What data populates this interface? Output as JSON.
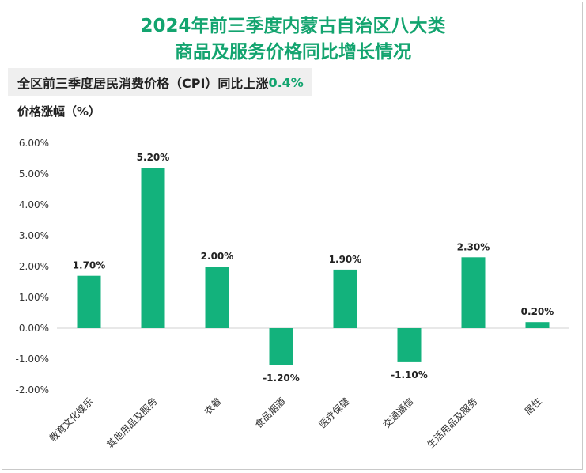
{
  "header": {
    "title_line1": "2024年前三季度内蒙古自治区八大类",
    "title_line2": "商品及服务价格同比增长情况",
    "subtitle_prefix": "全区前三季度居民消费价格（CPI）同比上涨",
    "subtitle_value": "0.4%",
    "unit_label": "价格涨幅（%）"
  },
  "colors": {
    "bar": "#13b27c",
    "title": "#13a46f"
  },
  "chart_data": {
    "type": "bar",
    "title": "2024年前三季度内蒙古自治区八大类商品及服务价格同比增长情况",
    "ylabel": "价格涨幅（%）",
    "xlabel": "",
    "categories": [
      "教育文化娱乐",
      "其他用品及服务",
      "衣着",
      "食品烟酒",
      "医疗保健",
      "交通通信",
      "生活用品及服务",
      "居住"
    ],
    "values": [
      1.7,
      5.2,
      2.0,
      -1.2,
      1.9,
      -1.1,
      2.3,
      0.2
    ],
    "data_labels": [
      "1.70%",
      "5.20%",
      "2.00%",
      "-1.20%",
      "1.90%",
      "-1.10%",
      "2.30%",
      "0.20%"
    ],
    "ylim": [
      -2.0,
      6.0
    ],
    "yticks": [
      6.0,
      5.0,
      4.0,
      3.0,
      2.0,
      1.0,
      0.0,
      -1.0,
      -2.0
    ],
    "ytick_labels": [
      "6.00%",
      "5.00%",
      "4.00%",
      "3.00%",
      "2.00%",
      "1.00%",
      "0.00%",
      "-1.00%",
      "-2.00%"
    ],
    "grid": false,
    "legend": "none"
  }
}
